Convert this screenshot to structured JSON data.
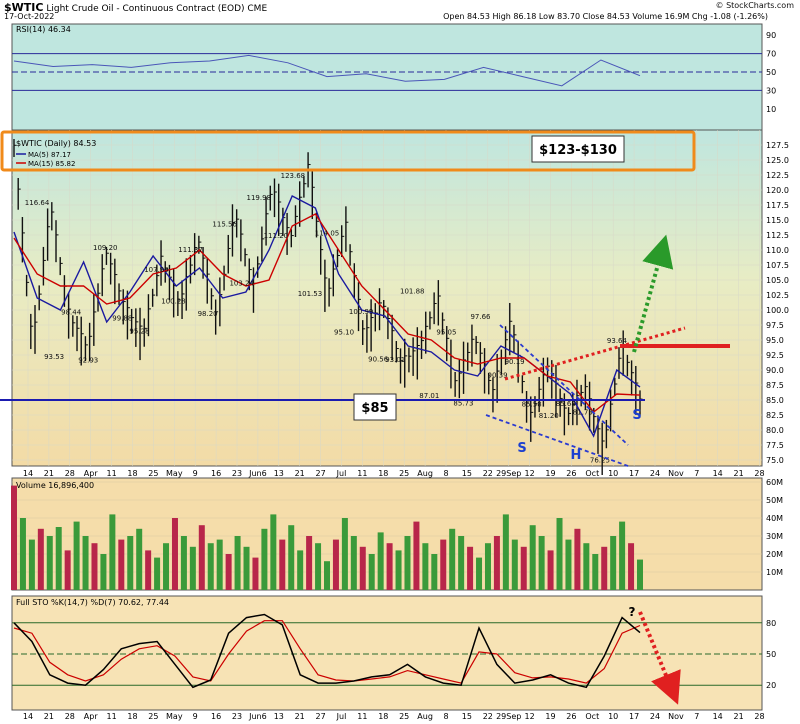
{
  "header": {
    "symbol": "$WTIC",
    "name": "Light Crude Oil - Continuous Contract (EOD)",
    "exchange": "CME",
    "date": "17-Oct-2022",
    "ohlc": "Open 84.53  High 86.18  Low 83.70  Close 84.53  Volume 16.9M  Chg -1.08 (-1.26%)",
    "watermark": "© StockCharts.com"
  },
  "chart_data": [
    {
      "type": "line",
      "panel": "rsi",
      "title": "RSI(14) 46.34",
      "ylim": [
        0,
        100
      ],
      "y_ticks": [
        10,
        30,
        50,
        70,
        90
      ],
      "levels": [
        30,
        50,
        70
      ],
      "x": [
        "Mar-14",
        "Mar-28",
        "Apr-11",
        "Apr-25",
        "May-9",
        "May-23",
        "Jun-6",
        "Jun-20",
        "Jul-5",
        "Jul-18",
        "Aug-1",
        "Aug-15",
        "Aug-29",
        "Sep-12",
        "Sep-26",
        "Oct-10",
        "Oct-17"
      ],
      "values": [
        62,
        56,
        58,
        55,
        60,
        62,
        68,
        60,
        45,
        48,
        40,
        42,
        55,
        45,
        35,
        63,
        46
      ]
    },
    {
      "type": "line",
      "panel": "price",
      "title": "$WTIC (Daily) 84.53",
      "legend": [
        "MA(5) 87.17",
        "MA(15) 85.82"
      ],
      "ylim": [
        74,
        130
      ],
      "y_ticks": [
        75.0,
        77.5,
        80.0,
        82.5,
        85.0,
        87.5,
        90.0,
        92.5,
        95.0,
        97.5,
        100.0,
        102.5,
        105.0,
        107.5,
        110.0,
        112.5,
        115.0,
        117.5,
        120.0,
        122.5,
        125.0,
        127.5
      ],
      "series": [
        {
          "name": "MA(5) 87.17",
          "color": "#1a1aa0",
          "values": [
            113,
            102,
            100,
            108,
            98,
            103,
            109,
            104,
            107,
            102,
            103,
            110,
            119,
            117,
            106,
            100,
            99,
            94,
            93,
            90,
            89,
            94,
            92,
            89,
            86,
            79,
            90,
            87.17
          ]
        },
        {
          "name": "MA(15) 85.82",
          "color": "#cc0000",
          "values": [
            112,
            106,
            104,
            104,
            101,
            102,
            106,
            107,
            110,
            106,
            104,
            105,
            114,
            116,
            110,
            104,
            100,
            96,
            95,
            92,
            91,
            92,
            92,
            89,
            88,
            83,
            86,
            85.82
          ]
        }
      ],
      "points": [
        127,
        93.5,
        116.6,
        98.4,
        92.9,
        109.2,
        99.9,
        95.3,
        108,
        100.3,
        111.4,
        98.2,
        115.6,
        103.2,
        120,
        111.2,
        123.7,
        101.5,
        114,
        95.1,
        101,
        90.6,
        93,
        101.9,
        87,
        95.1,
        85.7,
        97.7,
        81.2,
        90.2,
        81.7,
        86.7,
        76.3,
        93.6,
        84.53
      ],
      "annotations": [
        "116.64",
        "93.53",
        "98.44",
        "92.93",
        "109.20",
        "99.88",
        "95.28",
        "107.99",
        "100.28",
        "111.37",
        "98.20",
        "115.56",
        "103.24",
        "119.98",
        "111.20",
        "123.68",
        "101.53",
        "114.05",
        "95.10",
        "100.99",
        "90.56",
        "93.01",
        "101.88",
        "87.01",
        "95.05",
        "85.73",
        "97.66",
        "90.39",
        "90.19",
        "85.58",
        "81.20",
        "85.68",
        "81.73",
        "76.25",
        "93.64"
      ],
      "callouts": [
        "$123-$130",
        "$85"
      ],
      "pattern_labels": [
        "S",
        "H",
        "S"
      ]
    },
    {
      "type": "bar",
      "panel": "volume",
      "title": "Volume 16,896,400",
      "ylim": [
        0,
        60
      ],
      "y_ticks": [
        "10M",
        "20M",
        "30M",
        "40M",
        "50M",
        "60M"
      ],
      "values": [
        58,
        40,
        28,
        34,
        30,
        35,
        22,
        38,
        30,
        26,
        20,
        42,
        28,
        30,
        34,
        22,
        18,
        26,
        40,
        30,
        24,
        36,
        26,
        28,
        20,
        30,
        24,
        18,
        34,
        42,
        28,
        36,
        22,
        30,
        26,
        16,
        28,
        40,
        30,
        24,
        20,
        32,
        26,
        22,
        30,
        38,
        26,
        20,
        28,
        34,
        30,
        24,
        18,
        26,
        30,
        42,
        28,
        24,
        36,
        30,
        22,
        40,
        28,
        34,
        26,
        20,
        24,
        30,
        38,
        26,
        16.9
      ],
      "up_color": "#3a9a3a",
      "down_color": "#b8264a"
    },
    {
      "type": "line",
      "panel": "stochastic",
      "title": "Full STO %K(14,7) %D(7) 70.62, 77.44",
      "ylim": [
        0,
        100
      ],
      "y_ticks": [
        20,
        50,
        80
      ],
      "series": [
        {
          "name": "%K",
          "color": "#000000",
          "values": [
            80,
            62,
            30,
            22,
            20,
            35,
            55,
            60,
            62,
            40,
            18,
            25,
            70,
            85,
            88,
            78,
            30,
            22,
            22,
            24,
            28,
            30,
            40,
            28,
            22,
            20,
            75,
            40,
            22,
            25,
            30,
            22,
            18,
            48,
            85,
            70.62
          ]
        },
        {
          "name": "%D",
          "color": "#cc0000",
          "values": [
            75,
            70,
            42,
            30,
            24,
            30,
            45,
            55,
            58,
            48,
            28,
            24,
            50,
            72,
            82,
            82,
            55,
            30,
            25,
            24,
            26,
            28,
            34,
            30,
            26,
            22,
            52,
            50,
            32,
            27,
            28,
            26,
            22,
            36,
            70,
            77.44
          ]
        }
      ],
      "annotation": "?"
    }
  ],
  "x_axis": {
    "labels": [
      "14",
      "21",
      "28",
      "Apr",
      "11",
      "18",
      "25",
      "May",
      "9",
      "16",
      "23",
      "Jun6",
      "13",
      "21",
      "27",
      "Jul",
      "11",
      "18",
      "25",
      "Aug",
      "8",
      "15",
      "22",
      "29Sep",
      "12",
      "19",
      "26",
      "Oct",
      "10",
      "17",
      "24",
      "Nov",
      "7",
      "14",
      "21",
      "28"
    ]
  }
}
